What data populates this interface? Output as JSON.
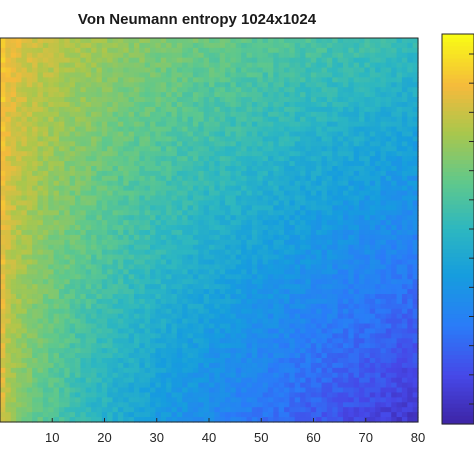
{
  "chart_data": {
    "type": "heatmap",
    "title": "Von Neumann entropy 1024x1024",
    "xlabel": "",
    "ylabel": "",
    "colormap": "parula",
    "colorbar": true,
    "xlim": [
      0,
      80
    ],
    "x_ticks": [
      10,
      20,
      30,
      40,
      50,
      60,
      70,
      80
    ],
    "x_tick_labels": [
      "10",
      "20",
      "30",
      "40",
      "50",
      "60",
      "70",
      "80"
    ],
    "y_tick_labels": [],
    "colorbar_tick_labels": [],
    "grid": false,
    "legend": "none",
    "cells_x": 78,
    "cells_y": 78,
    "value_range": [
      0,
      1
    ],
    "description_of_field": {
      "corner_top_left": 0.9,
      "corner_top_right": 0.52,
      "corner_bottom_left": 0.82,
      "corner_bottom_right": 0.06
    },
    "colors": {
      "parula_low": "#3e26a8",
      "parula_mid": "#2db7c0",
      "parula_high": "#f9fb15",
      "frame": "#262626"
    }
  }
}
